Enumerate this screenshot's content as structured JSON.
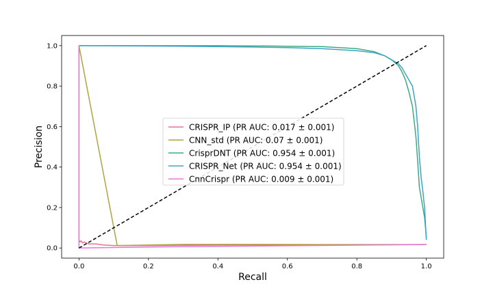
{
  "chart_data": {
    "type": "line",
    "title": "",
    "xlabel": "Recall",
    "ylabel": "Precision",
    "xlim": [
      -0.05,
      1.05
    ],
    "ylim": [
      -0.05,
      1.05
    ],
    "xticks": [
      "0.0",
      "0.2",
      "0.4",
      "0.6",
      "0.8",
      "1.0"
    ],
    "yticks": [
      "0.0",
      "0.2",
      "0.4",
      "0.6",
      "0.8",
      "1.0"
    ],
    "grid": false,
    "legend_position": "center",
    "series": [
      {
        "name": "CRISPR_IP (PR AUC: 0.017 ± 0.001)",
        "color": "#e8738a",
        "x": [
          0.0,
          0.0,
          0.003,
          0.006,
          0.01,
          0.015,
          0.02,
          0.03,
          0.05,
          0.07,
          0.1,
          0.2,
          0.4,
          0.6,
          0.8,
          1.0
        ],
        "y": [
          1.0,
          0.04,
          0.03,
          0.035,
          0.025,
          0.03,
          0.025,
          0.02,
          0.02,
          0.015,
          0.012,
          0.012,
          0.014,
          0.015,
          0.016,
          0.017
        ]
      },
      {
        "name": "CNN_std (PR AUC: 0.07 ± 0.001)",
        "color": "#b0a23c",
        "x": [
          0.0,
          0.11,
          0.2,
          0.3,
          0.5,
          0.7,
          1.0
        ],
        "y": [
          1.0,
          0.012,
          0.015,
          0.018,
          0.018,
          0.017,
          0.017
        ]
      },
      {
        "name": "CrisprDNT (PR AUC: 0.954 ± 0.001)",
        "color": "#3aaa82",
        "x": [
          0.0,
          0.2,
          0.4,
          0.55,
          0.6,
          0.65,
          0.7,
          0.75,
          0.8,
          0.85,
          0.88,
          0.9,
          0.92,
          0.93,
          0.94,
          0.95,
          0.96,
          0.97,
          0.975,
          0.98,
          0.985,
          0.99,
          0.995,
          1.0
        ],
        "y": [
          1.0,
          1.0,
          1.0,
          0.998,
          0.997,
          0.996,
          0.995,
          0.99,
          0.985,
          0.97,
          0.95,
          0.93,
          0.9,
          0.87,
          0.83,
          0.77,
          0.7,
          0.55,
          0.43,
          0.3,
          0.25,
          0.2,
          0.15,
          0.05
        ]
      },
      {
        "name": "CRISPR_Net (PR AUC: 0.954 ± 0.001)",
        "color": "#3ba3c6",
        "x": [
          0.0,
          0.3,
          0.5,
          0.6,
          0.7,
          0.75,
          0.8,
          0.85,
          0.88,
          0.9,
          0.92,
          0.93,
          0.94,
          0.95,
          0.96,
          0.97,
          0.975,
          0.98,
          0.985,
          0.99,
          0.995,
          1.0
        ],
        "y": [
          1.0,
          0.997,
          0.993,
          0.99,
          0.985,
          0.98,
          0.975,
          0.965,
          0.95,
          0.93,
          0.91,
          0.89,
          0.86,
          0.83,
          0.8,
          0.7,
          0.6,
          0.45,
          0.35,
          0.28,
          0.2,
          0.04
        ]
      },
      {
        "name": "CnnCrispr (PR AUC: 0.009 ± 0.001)",
        "color": "#e575e2",
        "x": [
          0.0,
          0.0,
          0.2,
          0.4,
          0.6,
          0.8,
          1.0
        ],
        "y": [
          1.0,
          0.0,
          0.005,
          0.008,
          0.011,
          0.014,
          0.017
        ]
      }
    ],
    "reference_line": {
      "style": "dashed",
      "color": "#000000",
      "x": [
        0.0,
        1.0
      ],
      "y": [
        0.0,
        1.0
      ]
    }
  }
}
